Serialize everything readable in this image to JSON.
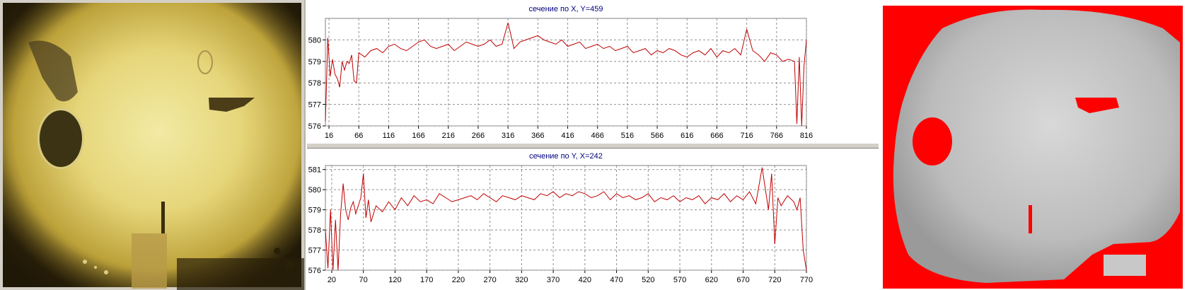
{
  "chart_data": [
    {
      "type": "line",
      "title": "сечение по X, Y=459",
      "xlabel": "",
      "ylabel": "",
      "xlim": [
        10,
        816
      ],
      "ylim": [
        576,
        581
      ],
      "x_ticks": [
        16,
        66,
        116,
        166,
        216,
        266,
        316,
        366,
        416,
        466,
        516,
        566,
        616,
        666,
        716,
        766,
        816
      ],
      "y_ticks": [
        576,
        577,
        578,
        579,
        580
      ],
      "grid": true,
      "series": [
        {
          "color": "#c00000",
          "x": [
            10,
            14,
            18,
            22,
            26,
            30,
            34,
            38,
            42,
            46,
            50,
            54,
            58,
            62,
            66,
            76,
            86,
            96,
            106,
            116,
            126,
            136,
            146,
            156,
            166,
            176,
            186,
            196,
            206,
            216,
            226,
            236,
            246,
            256,
            266,
            276,
            286,
            296,
            306,
            316,
            326,
            336,
            346,
            356,
            366,
            376,
            386,
            396,
            406,
            416,
            426,
            436,
            446,
            456,
            466,
            476,
            486,
            496,
            506,
            516,
            526,
            536,
            546,
            556,
            566,
            576,
            586,
            596,
            606,
            616,
            626,
            636,
            646,
            656,
            666,
            676,
            686,
            696,
            706,
            716,
            726,
            736,
            746,
            756,
            766,
            776,
            786,
            796,
            800,
            804,
            808,
            812,
            816
          ],
          "y": [
            576.2,
            580.1,
            578.3,
            579.1,
            578.4,
            578.2,
            577.8,
            579.0,
            578.6,
            579.0,
            578.9,
            579.3,
            578.1,
            578.0,
            579.4,
            579.2,
            579.5,
            579.6,
            579.4,
            579.7,
            579.8,
            579.6,
            579.5,
            579.7,
            579.9,
            580.0,
            579.7,
            579.6,
            579.7,
            579.8,
            579.5,
            579.7,
            579.9,
            579.8,
            579.7,
            579.8,
            580.0,
            579.7,
            579.8,
            580.8,
            579.6,
            579.9,
            580.0,
            580.1,
            580.2,
            580.0,
            579.9,
            579.8,
            580.0,
            579.7,
            579.8,
            579.9,
            579.6,
            579.7,
            579.8,
            579.6,
            579.7,
            579.5,
            579.6,
            579.7,
            579.4,
            579.5,
            579.6,
            579.3,
            579.5,
            579.4,
            579.6,
            579.5,
            579.3,
            579.2,
            579.4,
            579.5,
            579.3,
            579.6,
            579.2,
            579.5,
            579.4,
            579.6,
            579.3,
            580.5,
            579.5,
            579.3,
            579.0,
            579.4,
            579.3,
            579.0,
            579.1,
            579.0,
            576.1,
            579.2,
            576.0,
            578.8,
            580.0
          ]
        }
      ]
    },
    {
      "type": "line",
      "title": "сечение по Y, X=242",
      "xlabel": "",
      "ylabel": "",
      "xlim": [
        10,
        770
      ],
      "ylim": [
        576,
        581.2
      ],
      "x_ticks": [
        20,
        70,
        120,
        170,
        220,
        270,
        320,
        370,
        420,
        470,
        520,
        570,
        620,
        670,
        720,
        770
      ],
      "y_ticks": [
        576,
        577,
        578,
        579,
        580,
        581
      ],
      "grid": true,
      "series": [
        {
          "color": "#c00000",
          "x": [
            10,
            14,
            18,
            22,
            26,
            30,
            34,
            38,
            42,
            46,
            50,
            54,
            58,
            62,
            66,
            70,
            74,
            78,
            82,
            90,
            100,
            110,
            120,
            130,
            140,
            150,
            160,
            170,
            180,
            190,
            200,
            210,
            220,
            230,
            240,
            250,
            260,
            270,
            280,
            290,
            300,
            310,
            320,
            330,
            340,
            350,
            360,
            370,
            380,
            390,
            400,
            410,
            420,
            430,
            440,
            450,
            460,
            470,
            480,
            490,
            500,
            510,
            520,
            530,
            540,
            550,
            560,
            570,
            580,
            590,
            600,
            610,
            620,
            630,
            640,
            650,
            660,
            670,
            680,
            690,
            700,
            710,
            715,
            720,
            725,
            730,
            740,
            750,
            755,
            760,
            765,
            770
          ],
          "y": [
            578.0,
            576.1,
            579.0,
            576.0,
            578.5,
            576.0,
            578.8,
            580.3,
            579.0,
            578.5,
            579.1,
            579.4,
            578.8,
            579.2,
            579.6,
            580.8,
            578.6,
            579.5,
            578.4,
            579.2,
            578.9,
            579.4,
            579.0,
            579.6,
            579.2,
            579.7,
            579.4,
            579.5,
            579.3,
            579.8,
            579.6,
            579.4,
            579.5,
            579.6,
            579.7,
            579.5,
            579.8,
            579.6,
            579.4,
            579.7,
            579.6,
            579.5,
            579.7,
            579.6,
            579.5,
            579.8,
            579.7,
            579.9,
            579.6,
            579.8,
            579.7,
            579.9,
            579.8,
            579.6,
            579.7,
            579.9,
            579.5,
            579.8,
            579.6,
            579.7,
            579.5,
            579.6,
            579.8,
            579.4,
            579.6,
            579.5,
            579.7,
            579.4,
            579.6,
            579.5,
            579.7,
            579.3,
            579.6,
            579.5,
            579.8,
            579.4,
            579.7,
            579.5,
            579.9,
            579.3,
            581.1,
            579.0,
            580.8,
            577.3,
            579.6,
            579.2,
            579.7,
            579.4,
            579.0,
            579.6,
            577.0,
            576.0
          ]
        }
      ]
    }
  ]
}
